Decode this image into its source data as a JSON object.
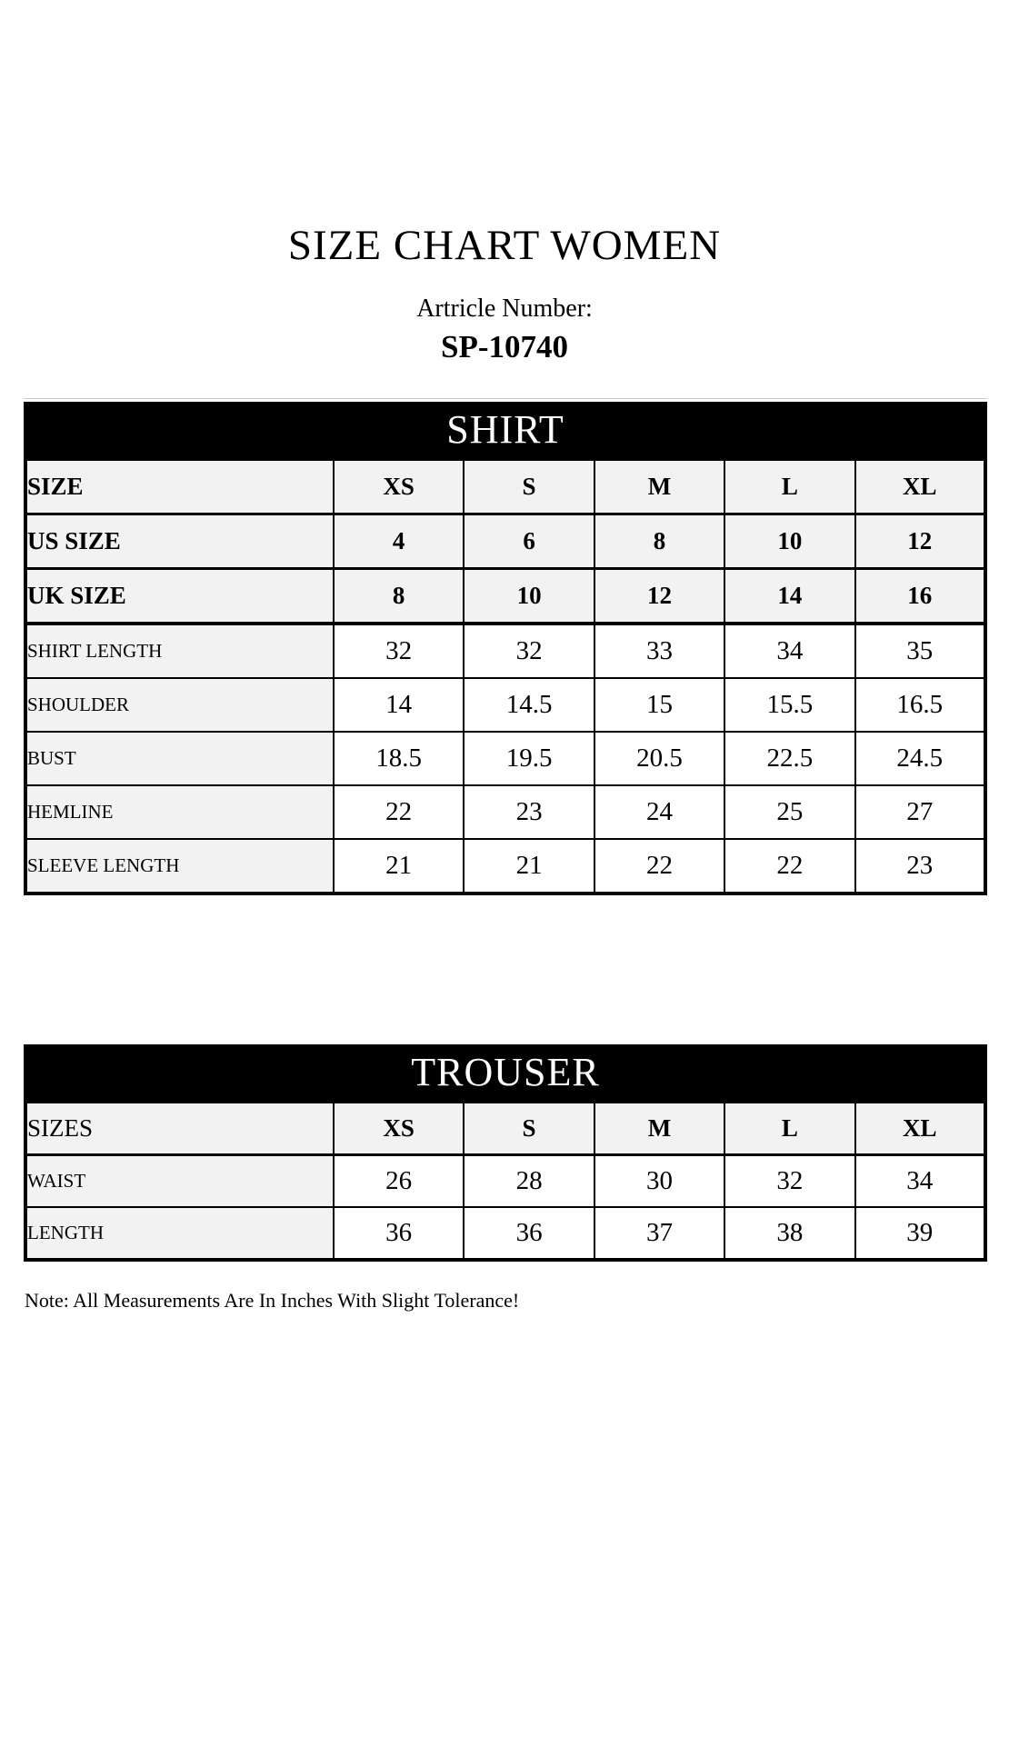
{
  "page": {
    "title": "SIZE CHART WOMEN",
    "article_label": "Artricle Number:",
    "article_number": "SP-10740",
    "note": "Note: All Measurements Are In Inches With Slight Tolerance!"
  },
  "colors": {
    "band_bg": "#000000",
    "band_text": "#ffffff",
    "row_gray": "#f2f2f2",
    "row_white": "#ffffff",
    "border": "#000000"
  },
  "shirt_table": {
    "title": "SHIRT",
    "columns": [
      "XS",
      "S",
      "M",
      "L",
      "XL"
    ],
    "rows": [
      {
        "label": "SIZE",
        "values": [
          "XS",
          "S",
          "M",
          "L",
          "XL"
        ],
        "kind": "size"
      },
      {
        "label": "US SIZE",
        "values": [
          "4",
          "6",
          "8",
          "10",
          "12"
        ],
        "kind": "size"
      },
      {
        "label": "UK SIZE",
        "values": [
          "8",
          "10",
          "12",
          "14",
          "16"
        ],
        "kind": "size",
        "group_end": true
      },
      {
        "label": "SHIRT LENGTH",
        "values": [
          "32",
          "32",
          "33",
          "34",
          "35"
        ],
        "kind": "measure"
      },
      {
        "label": "SHOULDER",
        "values": [
          "14",
          "14.5",
          "15",
          "15.5",
          "16.5"
        ],
        "kind": "measure"
      },
      {
        "label": "BUST",
        "values": [
          "18.5",
          "19.5",
          "20.5",
          "22.5",
          "24.5"
        ],
        "kind": "measure"
      },
      {
        "label": "HEMLINE",
        "values": [
          "22",
          "23",
          "24",
          "25",
          "27"
        ],
        "kind": "measure"
      },
      {
        "label": "SLEEVE LENGTH",
        "values": [
          "21",
          "21",
          "22",
          "22",
          "23"
        ],
        "kind": "measure"
      }
    ]
  },
  "trouser_table": {
    "title": "TROUSER",
    "columns": [
      "XS",
      "S",
      "M",
      "L",
      "XL"
    ],
    "rows": [
      {
        "label": "SIZES",
        "values": [
          "XS",
          "S",
          "M",
          "L",
          "XL"
        ],
        "kind": "size-plain"
      },
      {
        "label": "WAIST",
        "values": [
          "26",
          "28",
          "30",
          "32",
          "34"
        ],
        "kind": "measure"
      },
      {
        "label": "LENGTH",
        "values": [
          "36",
          "36",
          "37",
          "38",
          "39"
        ],
        "kind": "measure"
      }
    ]
  }
}
